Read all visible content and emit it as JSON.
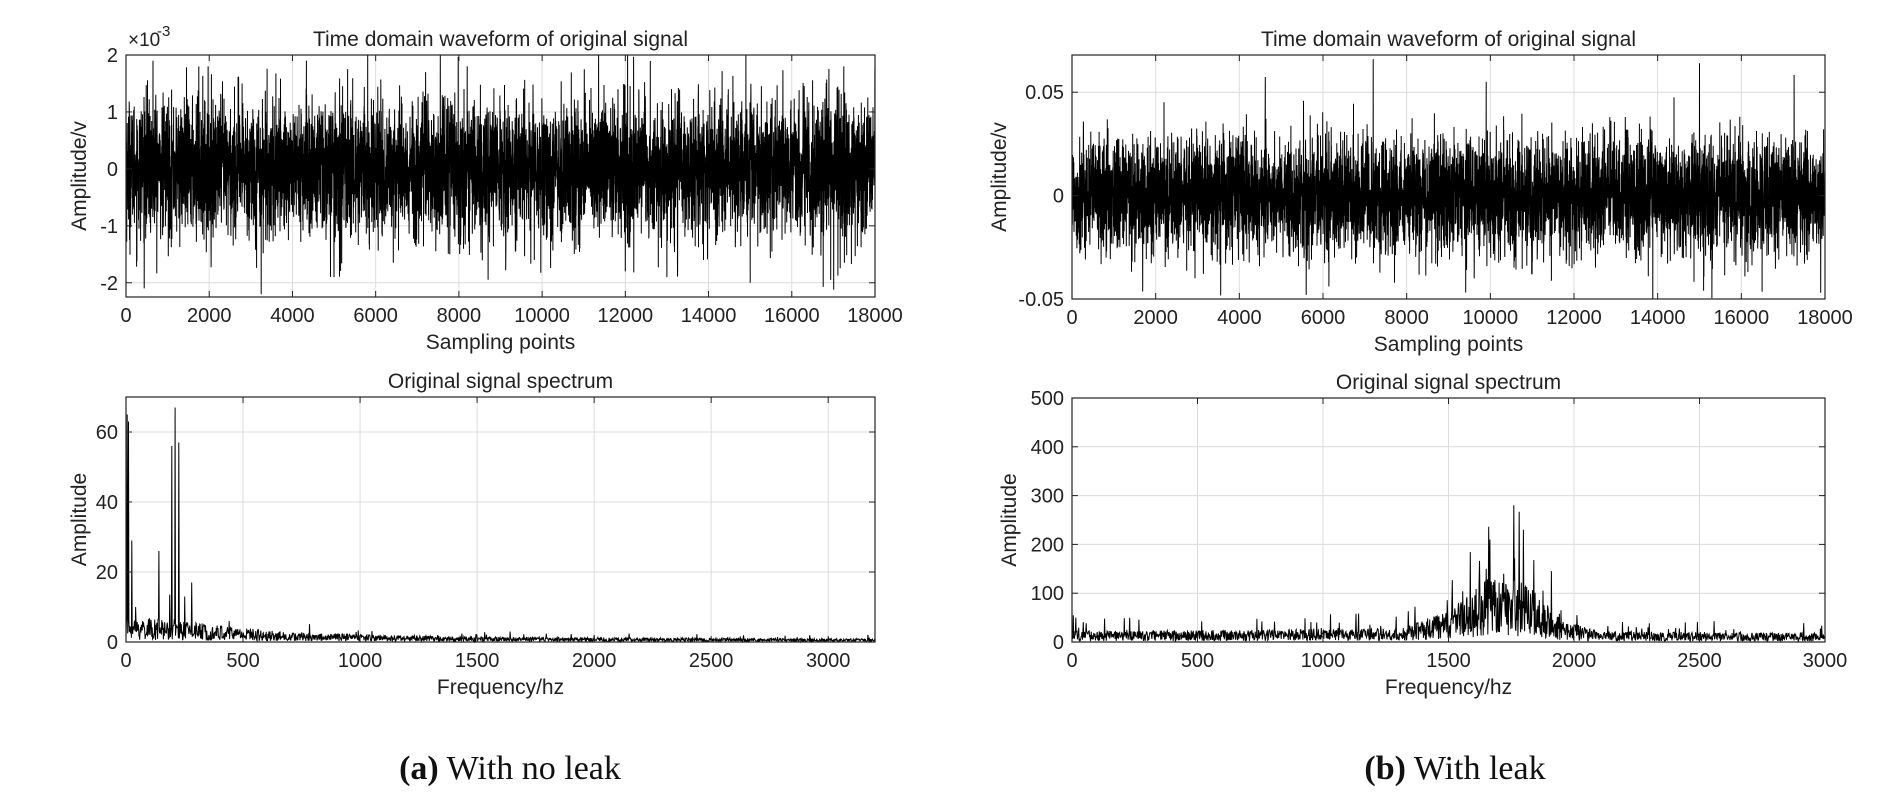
{
  "chart_data": [
    {
      "id": "a1",
      "type": "line",
      "title": "Time domain waveform of original signal",
      "xlabel": "Sampling points",
      "ylabel": "Amplitude/v",
      "xlim": [
        0,
        18000
      ],
      "ylim": [
        -0.00225,
        0.002
      ],
      "xticks": [
        0,
        2000,
        4000,
        6000,
        8000,
        10000,
        12000,
        14000,
        16000,
        18000
      ],
      "yticks": [
        -2,
        -1,
        0,
        1,
        2
      ],
      "ytick_labels": [
        "-2",
        "-1",
        "0",
        "1",
        "2"
      ],
      "y_multiplier": "×10",
      "y_multiplier_exponent": "-3",
      "grid": true,
      "series": [
        {
          "kind": "noise",
          "n": 18000,
          "std": 0.0006,
          "peaks": [
            [
              650,
              0.0019
            ],
            [
              1750,
              0.0018
            ],
            [
              3250,
              -0.0022
            ],
            [
              5000,
              -0.0019
            ],
            [
              7200,
              0.0017
            ],
            [
              12000,
              -0.0018
            ],
            [
              13000,
              -0.0019
            ],
            [
              14900,
              0.002
            ],
            [
              15000,
              -0.002
            ],
            [
              17250,
              0.0018
            ]
          ]
        }
      ]
    },
    {
      "id": "a2",
      "type": "line",
      "title": "Original signal spectrum",
      "xlabel": "Frequency/hz",
      "ylabel": "Amplitude",
      "xlim": [
        0,
        3200
      ],
      "ylim": [
        0,
        70
      ],
      "xticks": [
        0,
        500,
        1000,
        1500,
        2000,
        2500,
        3000
      ],
      "yticks": [
        0,
        20,
        40,
        60
      ],
      "ytick_labels": [
        "0",
        "20",
        "40",
        "60"
      ],
      "grid": true,
      "series": [
        {
          "kind": "spectrum",
          "n": 1800,
          "floor": [
            [
              0,
              4
            ],
            [
              300,
              3
            ],
            [
              700,
              1.5
            ],
            [
              1500,
              0.8
            ],
            [
              3200,
              0.5
            ]
          ],
          "peaks": [
            [
              5,
              65
            ],
            [
              10,
              63
            ],
            [
              25,
              29
            ],
            [
              40,
              10
            ],
            [
              140,
              26
            ],
            [
              195,
              56
            ],
            [
              210,
              67
            ],
            [
              225,
              57
            ],
            [
              250,
              13
            ],
            [
              280,
              17
            ],
            [
              440,
              6
            ],
            [
              1640,
              3
            ],
            [
              2000,
              2
            ]
          ]
        }
      ]
    },
    {
      "id": "b1",
      "type": "line",
      "title": "Time domain waveform of original signal",
      "xlabel": "Sampling points",
      "ylabel": "Amplitude/v",
      "xlim": [
        0,
        18000
      ],
      "ylim": [
        -0.05,
        0.068
      ],
      "xticks": [
        0,
        2000,
        4000,
        6000,
        8000,
        10000,
        12000,
        14000,
        16000,
        18000
      ],
      "yticks": [
        -0.05,
        0,
        0.05
      ],
      "ytick_labels": [
        "-0.05",
        "0",
        "0.05"
      ],
      "grid": true,
      "series": [
        {
          "kind": "noise",
          "n": 18000,
          "std": 0.014,
          "peaks": [
            [
              5600,
              -0.048
            ],
            [
              7200,
              0.066
            ],
            [
              9900,
              0.055
            ],
            [
              15000,
              0.064
            ],
            [
              15100,
              -0.046
            ],
            [
              17900,
              -0.047
            ]
          ]
        }
      ]
    },
    {
      "id": "b2",
      "type": "line",
      "title": "Original signal spectrum",
      "xlabel": "Frequency/hz",
      "ylabel": "Amplitude",
      "xlim": [
        0,
        3000
      ],
      "ylim": [
        0,
        500
      ],
      "xticks": [
        0,
        500,
        1000,
        1500,
        2000,
        2500,
        3000
      ],
      "yticks": [
        0,
        100,
        200,
        300,
        400,
        500
      ],
      "ytick_labels": [
        "0",
        "100",
        "200",
        "300",
        "400",
        "500"
      ],
      "grid": true,
      "series": [
        {
          "kind": "spectrum",
          "n": 1800,
          "floor": [
            [
              0,
              12
            ],
            [
              1300,
              15
            ],
            [
              1500,
              35
            ],
            [
              1650,
              70
            ],
            [
              1800,
              70
            ],
            [
              1950,
              25
            ],
            [
              2100,
              12
            ],
            [
              3000,
              10
            ]
          ],
          "peaks": [
            [
              5,
              55
            ],
            [
              15,
              50
            ],
            [
              130,
              48
            ],
            [
              1650,
              150
            ],
            [
              1720,
              140
            ],
            [
              1840,
              168
            ],
            [
              1780,
              120
            ]
          ]
        }
      ]
    }
  ],
  "captions": {
    "a_label": "(a)",
    "a_text": " With no leak",
    "b_label": "(b)",
    "b_text": " With leak"
  }
}
